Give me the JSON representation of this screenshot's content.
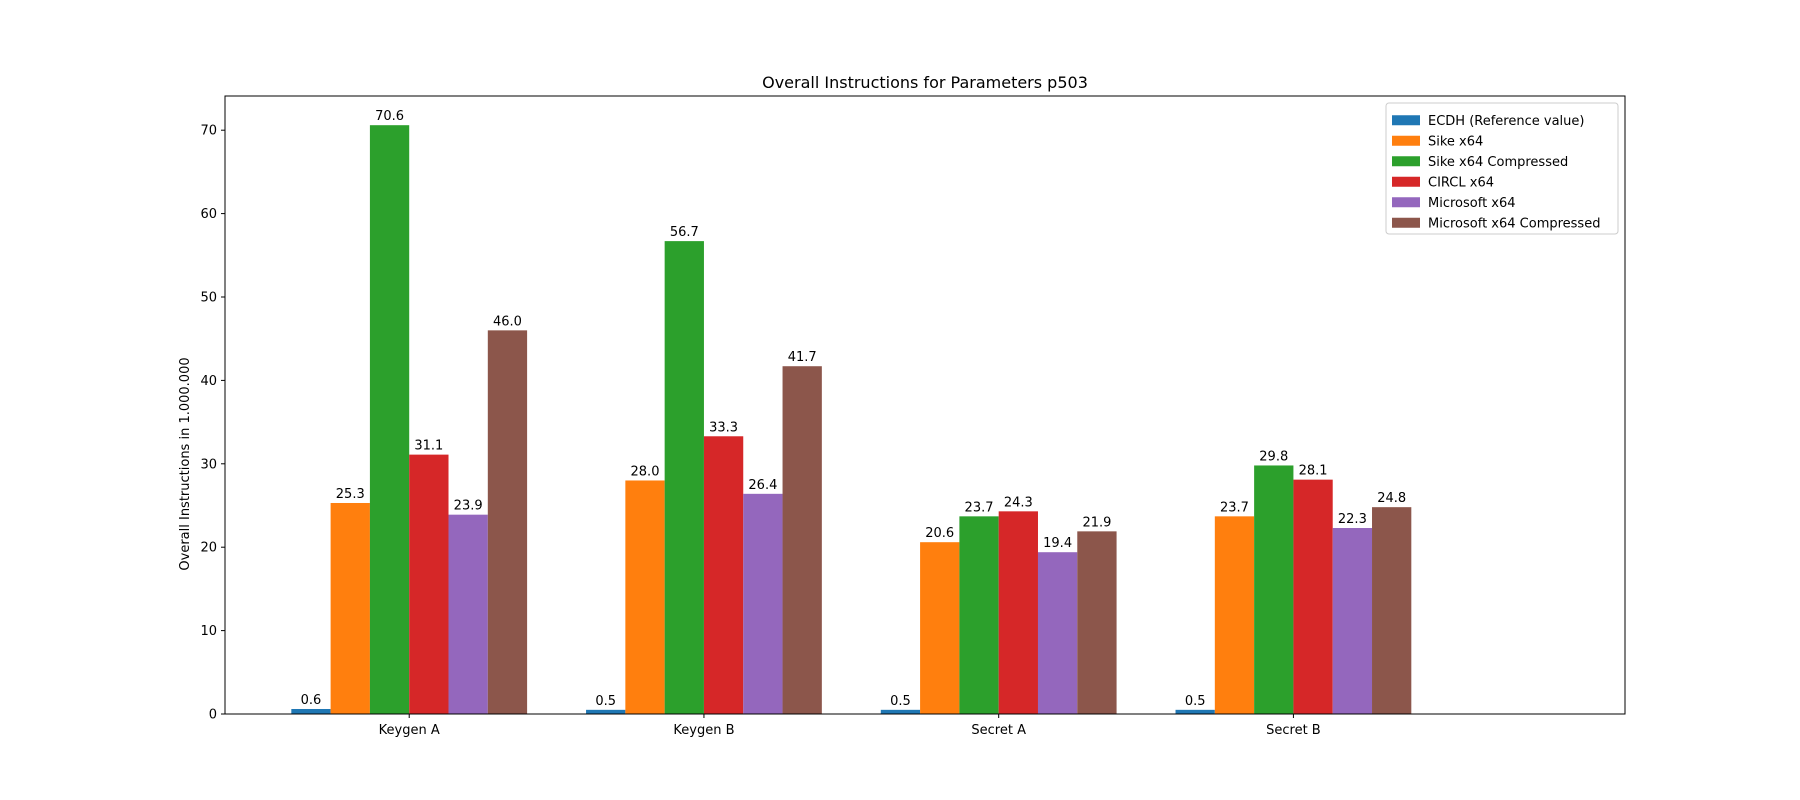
{
  "chart_data": {
    "type": "bar",
    "title": "Overall Instructions for Parameters p503",
    "xlabel": "",
    "ylabel": "Overall Instructions in 1.000.000",
    "categories": [
      "Keygen A",
      "Keygen B",
      "Secret A",
      "Secret B"
    ],
    "ylim": [
      0,
      74.1
    ],
    "yticks": [
      0,
      10,
      20,
      30,
      40,
      50,
      60,
      70
    ],
    "legend_position": "top-right",
    "grid": false,
    "series": [
      {
        "name": "ECDH (Reference value)",
        "color": "#1f77b4",
        "values": [
          0.6,
          0.5,
          0.5,
          0.5
        ],
        "labels": [
          "0.6",
          "0.5",
          "0.5",
          "0.5"
        ]
      },
      {
        "name": "Sike x64",
        "color": "#ff7f0e",
        "values": [
          25.3,
          28.0,
          20.6,
          23.7
        ],
        "labels": [
          "25.3",
          "28.0",
          "20.6",
          "23.7"
        ]
      },
      {
        "name": "Sike x64 Compressed",
        "color": "#2ca02c",
        "values": [
          70.6,
          56.7,
          23.7,
          29.8
        ],
        "labels": [
          "70.6",
          "56.7",
          "23.7",
          "29.8"
        ]
      },
      {
        "name": "CIRCL x64",
        "color": "#d62728",
        "values": [
          31.1,
          33.3,
          24.3,
          28.1
        ],
        "labels": [
          "31.1",
          "33.3",
          "24.3",
          "28.1"
        ]
      },
      {
        "name": "Microsoft x64",
        "color": "#9467bd",
        "values": [
          23.9,
          26.4,
          19.4,
          22.3
        ],
        "labels": [
          "23.9",
          "26.4",
          "19.4",
          "22.3"
        ]
      },
      {
        "name": "Microsoft x64 Compressed",
        "color": "#8c564b",
        "values": [
          46.0,
          41.7,
          21.9,
          24.8
        ],
        "labels": [
          "46.0",
          "41.7",
          "21.9",
          "24.8"
        ]
      }
    ]
  }
}
